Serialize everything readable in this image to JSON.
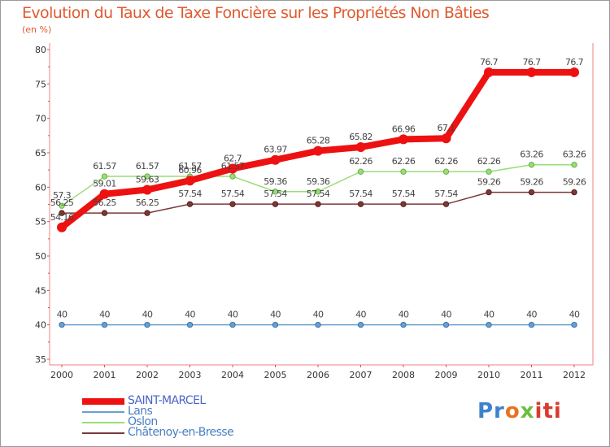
{
  "title": "Evolution du Taux de Taxe Foncière sur les Propriétés Non Bâties",
  "subtitle": "(en %)",
  "logo": {
    "p1": "Pr",
    "p2": "o",
    "p3": "x",
    "p4": "iti"
  },
  "chart_data": {
    "type": "line",
    "title": "Evolution du Taux de Taxe Foncière sur les Propriétés Non Bâties",
    "ylabel": "(en %)",
    "xlabel": "",
    "ylim": [
      35,
      80
    ],
    "yticks": [
      "35",
      "40",
      "45",
      "50",
      "55",
      "60",
      "65",
      "70",
      "75",
      "80"
    ],
    "x": [
      "2000",
      "2001",
      "2002",
      "2003",
      "2004",
      "2005",
      "2006",
      "2007",
      "2008",
      "2009",
      "2010",
      "2011",
      "2012"
    ],
    "grid": false,
    "series": [
      {
        "name": "SAINT-MARCEL",
        "color": "#ee1111",
        "values": [
          54.16,
          59.01,
          59.63,
          60.96,
          62.7,
          63.97,
          65.28,
          65.82,
          66.96,
          67.1,
          76.7,
          76.7,
          76.7
        ],
        "labels": [
          "54.16",
          "59.01",
          "59.63",
          "60.96",
          "62.7",
          "63.97",
          "65.28",
          "65.82",
          "66.96",
          "67.1",
          "76.7",
          "76.7",
          "76.7"
        ]
      },
      {
        "name": "Lans",
        "color": "#6a9fd0",
        "values": [
          40,
          40,
          40,
          40,
          40,
          40,
          40,
          40,
          40,
          40,
          40,
          40,
          40
        ],
        "labels": [
          "40",
          "40",
          "40",
          "40",
          "40",
          "40",
          "40",
          "40",
          "40",
          "40",
          "40",
          "40",
          "40"
        ]
      },
      {
        "name": "Oslon",
        "color": "#99dd77",
        "values": [
          57.3,
          61.57,
          61.57,
          61.57,
          61.57,
          59.36,
          59.36,
          62.26,
          62.26,
          62.26,
          62.26,
          63.26,
          63.26
        ],
        "labels": [
          "57.3",
          "61.57",
          "61.57",
          "61.57",
          "61.57",
          "59.36",
          "59.36",
          "62.26",
          "62.26",
          "62.26",
          "62.26",
          "63.26",
          "63.26"
        ]
      },
      {
        "name": "Châtenoy-en-Bresse",
        "color": "#7a3a3a",
        "values": [
          56.25,
          56.25,
          56.25,
          57.54,
          57.54,
          57.54,
          57.54,
          57.54,
          57.54,
          57.54,
          59.26,
          59.26,
          59.26
        ],
        "labels": [
          "56.25",
          "56.25",
          "56.25",
          "57.54",
          "57.54",
          "57.54",
          "57.54",
          "57.54",
          "57.54",
          "57.54",
          "59.26",
          "59.26",
          "59.26"
        ]
      }
    ],
    "legend": "bottom-left"
  }
}
